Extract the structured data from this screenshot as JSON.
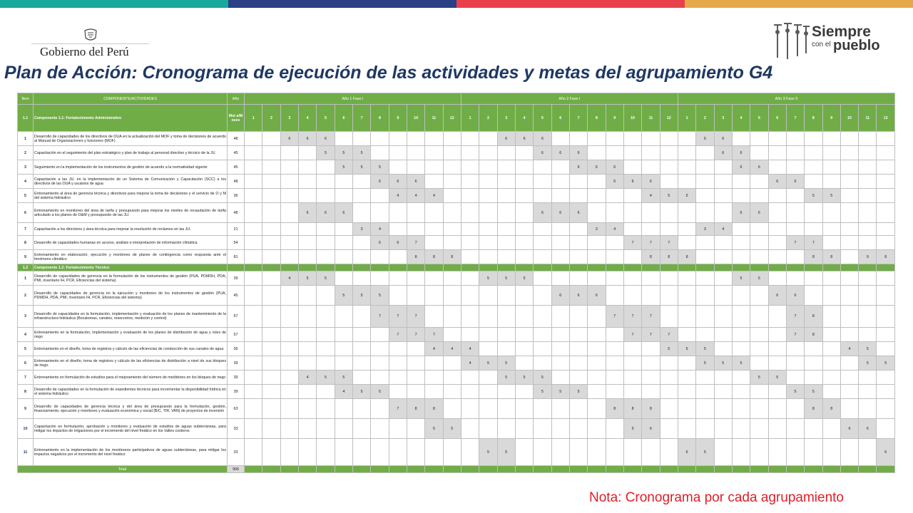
{
  "colors": {
    "bar": [
      "#18a99c",
      "#2b3f84",
      "#e8414c",
      "#e6a94a"
    ],
    "green": "#70ad47",
    "title": "#1f3864",
    "note": "#e01e26"
  },
  "header": {
    "gov_name": "Gobierno del Perú",
    "slogan_line1": "Siempre",
    "slogan_line2_prefix": "con el",
    "slogan_line2": "pueblo"
  },
  "title": "Plan de Acción: Cronograma de ejecución de las actividades y metas del agrupamiento G4",
  "table": {
    "header": {
      "item": "Ítem",
      "component": "COMPONENTE/ACTIVIDADES",
      "year": "Año",
      "year1": "Año 1 Fase I",
      "year2": "Año 2 Fase I",
      "year3": "Año 3 Fase II",
      "meta": "Met a/M eses",
      "months": [
        "1",
        "2",
        "3",
        "4",
        "5",
        "6",
        "7",
        "8",
        "9",
        "10",
        "11",
        "12"
      ]
    },
    "rows": [
      {
        "type": "comp",
        "item": "1.1",
        "desc": "Componente 1.1: Fortalecimiento Administrativo",
        "header": true
      },
      {
        "type": "act",
        "item": "1",
        "desc": "Desarrollo de capacidades de los directivos de OUA en la actualización del MOF y toma de decisiones de acuerdo al Manual de Organizaciones y funciones (MOF)",
        "meta": "48",
        "marks": [
          [
            2,
            "6"
          ],
          [
            3,
            "6"
          ],
          [
            4,
            "6"
          ],
          [
            14,
            "6"
          ],
          [
            15,
            "6"
          ],
          [
            16,
            "6"
          ],
          [
            25,
            "6"
          ],
          [
            26,
            "6"
          ]
        ]
      },
      {
        "type": "act",
        "item": "2",
        "desc": "Capacitación en el seguimiento del plan estratégico y plan de trabajo al personal directivo y técnico de la JU",
        "meta": "45",
        "marks": [
          [
            4,
            "5"
          ],
          [
            5,
            "5"
          ],
          [
            6,
            "5"
          ],
          [
            16,
            "6"
          ],
          [
            17,
            "6"
          ],
          [
            18,
            "6"
          ],
          [
            26,
            "6"
          ],
          [
            27,
            "6"
          ]
        ]
      },
      {
        "type": "act",
        "item": "3",
        "desc": "Seguimiento en la implementación de los instrumentos de gestión de acuerdo a la normatividad vigente",
        "meta": "45",
        "marks": [
          [
            5,
            "5"
          ],
          [
            6,
            "5"
          ],
          [
            7,
            "5"
          ],
          [
            18,
            "6"
          ],
          [
            19,
            "6"
          ],
          [
            20,
            "6"
          ],
          [
            27,
            "6"
          ],
          [
            28,
            "6"
          ]
        ]
      },
      {
        "type": "act",
        "item": "4",
        "desc": "Capacitación a las JU. en la implementación de un Sistema de Comunicación y Capacitación (SCC) a los directivos de las OUA y usuarios de agua",
        "meta": "48",
        "marks": [
          [
            7,
            "6"
          ],
          [
            8,
            "6"
          ],
          [
            9,
            "6"
          ],
          [
            20,
            "6"
          ],
          [
            21,
            "6"
          ],
          [
            22,
            "6"
          ],
          [
            29,
            "6"
          ],
          [
            30,
            "6"
          ]
        ]
      },
      {
        "type": "act",
        "item": "5",
        "desc": "Entrenamiento al área de gerencia técnica y directivos para mejorar la toma de decisiones y el servicio de O y M del sistema hidráulico",
        "meta": "36",
        "marks": [
          [
            8,
            "4"
          ],
          [
            9,
            "4"
          ],
          [
            10,
            "4"
          ],
          [
            22,
            "4"
          ],
          [
            23,
            "5"
          ],
          [
            24,
            "5"
          ],
          [
            31,
            "5"
          ],
          [
            32,
            "5"
          ]
        ]
      },
      {
        "type": "act",
        "item": "6",
        "desc": "Entrenamiento en monitoreo del área de tarifa y presupuesto para mejorar los niveles de recaudación de tarifa articulado a los planes de O&M y presupuesto de las JU.",
        "meta": "48",
        "marks": [
          [
            3,
            "6"
          ],
          [
            4,
            "6"
          ],
          [
            5,
            "6"
          ],
          [
            16,
            "6"
          ],
          [
            17,
            "6"
          ],
          [
            18,
            "6"
          ],
          [
            27,
            "6"
          ],
          [
            28,
            "6"
          ]
        ]
      },
      {
        "type": "act",
        "item": "7",
        "desc": "Capacitación a los directivos y área técnica para mejorar la resolución de reclamos en las JU.",
        "meta": "21",
        "marks": [
          [
            6,
            "3"
          ],
          [
            7,
            "4"
          ],
          [
            19,
            "3"
          ],
          [
            20,
            "4"
          ],
          [
            25,
            "3"
          ],
          [
            26,
            "4"
          ]
        ]
      },
      {
        "type": "act",
        "item": "8",
        "desc": "Desarrollo de capacidades humanas en acceso, análisis e interpretación de información climática",
        "meta": "54",
        "marks": [
          [
            7,
            "6"
          ],
          [
            8,
            "6"
          ],
          [
            9,
            "7"
          ],
          [
            21,
            "7"
          ],
          [
            22,
            "7"
          ],
          [
            23,
            "7"
          ],
          [
            30,
            "7"
          ],
          [
            31,
            "7"
          ]
        ]
      },
      {
        "type": "act",
        "item": "9",
        "desc": "Entrenamiento en elaboración, ejecución y monitoreo de planes de contingencia como respuesta ante el fenómeno climático",
        "meta": "81",
        "marks": [
          [
            9,
            "8"
          ],
          [
            10,
            "8"
          ],
          [
            11,
            "8"
          ],
          [
            22,
            "8"
          ],
          [
            23,
            "8"
          ],
          [
            24,
            "8"
          ],
          [
            31,
            "8"
          ],
          [
            32,
            "8"
          ],
          [
            34,
            "9"
          ],
          [
            35,
            "8"
          ]
        ]
      },
      {
        "type": "comp",
        "item": "1.2",
        "desc": "Componente 1.2: Fortalecimiento Técnico",
        "header": false
      },
      {
        "type": "act",
        "item": "1",
        "desc": "Desarrollo de capacidades de gerencia en la formulación de los instrumentos de gestión (PUA, PDMDH, PDA, PMI, inventario IH, PCR, Eficiencias del sistema)",
        "meta": "39",
        "marks": [
          [
            2,
            "4"
          ],
          [
            3,
            "5"
          ],
          [
            4,
            "5"
          ],
          [
            13,
            "5"
          ],
          [
            14,
            "5"
          ],
          [
            15,
            "5"
          ],
          [
            27,
            "5"
          ],
          [
            28,
            "5"
          ]
        ]
      },
      {
        "type": "act",
        "item": "2",
        "desc": "Desarrollo de capacidades de gerencia en la ejecución y monitoreo de los instrumentos de gestión (PUA, PDMDH, PDA, PMI, inventario IH, PCR, Eficiencias del sistema)",
        "meta": "45",
        "marks": [
          [
            5,
            "5"
          ],
          [
            6,
            "5"
          ],
          [
            7,
            "5"
          ],
          [
            17,
            "6"
          ],
          [
            18,
            "6"
          ],
          [
            19,
            "6"
          ],
          [
            29,
            "6"
          ],
          [
            30,
            "6"
          ]
        ]
      },
      {
        "type": "act",
        "item": "3",
        "desc": "Desarrollo de capacidades en la formulación, implementación y evaluación de los planes de mantenimiento de la infraestructura hidráulica (Bocatomas, canales, reservorios, medición y control)",
        "meta": "57",
        "marks": [
          [
            7,
            "7"
          ],
          [
            8,
            "7"
          ],
          [
            9,
            "7"
          ],
          [
            20,
            "7"
          ],
          [
            21,
            "7"
          ],
          [
            22,
            "7"
          ],
          [
            30,
            "7"
          ],
          [
            31,
            "8"
          ]
        ]
      },
      {
        "type": "act",
        "item": "4",
        "desc": "Entrenamiento en la formulación, implementación y evaluación de los planes de distribución de agua y roles de riego",
        "meta": "57",
        "marks": [
          [
            8,
            "7"
          ],
          [
            9,
            "7"
          ],
          [
            10,
            "7"
          ],
          [
            21,
            "7"
          ],
          [
            22,
            "7"
          ],
          [
            23,
            "7"
          ],
          [
            30,
            "7"
          ],
          [
            31,
            "8"
          ]
        ]
      },
      {
        "type": "act",
        "item": "5",
        "desc": "Entrenamiento en el diseño, toma de registros y cálculo de las eficiencias de conducción de sus canales de agua",
        "meta": "36",
        "marks": [
          [
            10,
            "4"
          ],
          [
            11,
            "4"
          ],
          [
            12,
            "4"
          ],
          [
            23,
            "5"
          ],
          [
            24,
            "5"
          ],
          [
            25,
            "5"
          ],
          [
            33,
            "4"
          ],
          [
            34,
            "5"
          ]
        ]
      },
      {
        "type": "act",
        "item": "6",
        "desc": "Entrenamiento en el diseño, toma de registros y cálculo de las eficiencias de distribución a nivel de sus bloques de riego.",
        "meta": "39",
        "marks": [
          [
            12,
            "4"
          ],
          [
            13,
            "5"
          ],
          [
            14,
            "5"
          ],
          [
            25,
            "5"
          ],
          [
            26,
            "5"
          ],
          [
            27,
            "5"
          ],
          [
            34,
            "5"
          ],
          [
            35,
            "5"
          ]
        ]
      },
      {
        "type": "act",
        "item": "7",
        "desc": "Entrenamiento en formulación de estudios para el mejoramiento del número de medidores en los bloques de riego",
        "meta": "39",
        "marks": [
          [
            3,
            "4"
          ],
          [
            4,
            "5"
          ],
          [
            5,
            "5"
          ],
          [
            14,
            "5"
          ],
          [
            15,
            "5"
          ],
          [
            16,
            "5"
          ],
          [
            28,
            "5"
          ],
          [
            29,
            "5"
          ]
        ]
      },
      {
        "type": "act",
        "item": "8",
        "desc": "Desarrollo de capacidades en la formulación de expedientes técnicos para incrementar la disponibilidad hídrica en el sistema hidráulico",
        "meta": "39",
        "marks": [
          [
            5,
            "4"
          ],
          [
            6,
            "5"
          ],
          [
            7,
            "5"
          ],
          [
            16,
            "5"
          ],
          [
            17,
            "5"
          ],
          [
            18,
            "5"
          ],
          [
            30,
            "5"
          ],
          [
            31,
            "5"
          ]
        ]
      },
      {
        "type": "act",
        "item": "9",
        "desc": "Desarrollo de capacidades de gerencia técnica y del área de presupuesto para la formulación, gestión, financiamiento, ejecución y monitoreo y evaluación económica y social (B/C, TIR, VAN) de proyectos de inversión",
        "meta": "63",
        "marks": [
          [
            8,
            "7"
          ],
          [
            9,
            "8"
          ],
          [
            10,
            "8"
          ],
          [
            20,
            "8"
          ],
          [
            21,
            "8"
          ],
          [
            22,
            "8"
          ],
          [
            31,
            "8"
          ],
          [
            32,
            "8"
          ]
        ]
      },
      {
        "type": "act",
        "item": "10",
        "desc": "Capacitación en formulación, aprobación y monitoreo y evaluación de estudios de aguas subterráneas, para mitigar los impactos de irrigaciones por el incremento del nivel freático en los Valles costeros",
        "meta": "33",
        "marks": [
          [
            10,
            "5"
          ],
          [
            11,
            "5"
          ],
          [
            21,
            "5"
          ],
          [
            22,
            "6"
          ],
          [
            33,
            "6"
          ],
          [
            34,
            "6"
          ]
        ]
      },
      {
        "type": "act",
        "item": "11",
        "desc": "Entrenamiento en la implementación de los monitoreos participativos de aguas subterráneas, para mitigar los impactos negativos por el incremento del nivel freático",
        "meta": "33",
        "marks": [
          [
            13,
            "5"
          ],
          [
            14,
            "5"
          ],
          [
            24,
            "6"
          ],
          [
            25,
            "5"
          ],
          [
            35,
            "6"
          ],
          [
            36,
            "6"
          ]
        ]
      }
    ],
    "total_label": "Total",
    "total_value": "906"
  },
  "note": "Nota: Cronograma por cada agrupamiento"
}
